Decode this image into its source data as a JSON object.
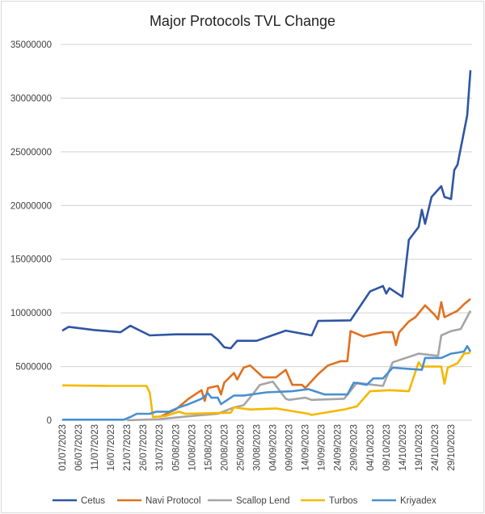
{
  "chart_data": {
    "type": "line",
    "title": "Major Protocols TVL Change",
    "xlabel": "",
    "ylabel": "",
    "xlim": [
      "01/07/2023",
      "04/11/2023"
    ],
    "ylim": [
      0,
      35000000
    ],
    "y_ticks": [
      0,
      5000000,
      10000000,
      15000000,
      20000000,
      25000000,
      30000000,
      35000000
    ],
    "x_tick_labels": [
      "01/07/2023",
      "06/07/2023",
      "11/07/2023",
      "16/07/2023",
      "21/07/2023",
      "26/07/2023",
      "31/07/2023",
      "05/08/2023",
      "10/08/2023",
      "15/08/2023",
      "20/08/2023",
      "25/08/2023",
      "30/08/2023",
      "04/09/2023",
      "09/09/2023",
      "14/09/2023",
      "19/09/2023",
      "24/09/2023",
      "29/09/2023",
      "04/10/2023",
      "09/10/2023",
      "14/10/2023",
      "19/10/2023",
      "24/10/2023",
      "29/10/2023"
    ],
    "grid": "horizontal",
    "legend": "bottom",
    "series": [
      {
        "name": "Cetus",
        "color": "#2f55a4",
        "points": [
          [
            "01/07/2023",
            8350000
          ],
          [
            "03/07/2023",
            8700000
          ],
          [
            "11/07/2023",
            8400000
          ],
          [
            "19/07/2023",
            8200000
          ],
          [
            "22/07/2023",
            8800000
          ],
          [
            "28/07/2023",
            7900000
          ],
          [
            "05/08/2023",
            8000000
          ],
          [
            "16/08/2023",
            8000000
          ],
          [
            "18/08/2023",
            7500000
          ],
          [
            "20/08/2023",
            6800000
          ],
          [
            "22/08/2023",
            6700000
          ],
          [
            "24/08/2023",
            7400000
          ],
          [
            "30/08/2023",
            7400000
          ],
          [
            "08/09/2023",
            8350000
          ],
          [
            "16/09/2023",
            7900000
          ],
          [
            "18/09/2023",
            9250000
          ],
          [
            "28/09/2023",
            9300000
          ],
          [
            "04/10/2023",
            12000000
          ],
          [
            "08/10/2023",
            12500000
          ],
          [
            "09/10/2023",
            11800000
          ],
          [
            "10/10/2023",
            12300000
          ],
          [
            "14/10/2023",
            11500000
          ],
          [
            "16/10/2023",
            16800000
          ],
          [
            "19/10/2023",
            18000000
          ],
          [
            "20/10/2023",
            19600000
          ],
          [
            "21/10/2023",
            18300000
          ],
          [
            "23/10/2023",
            20800000
          ],
          [
            "26/10/2023",
            21800000
          ],
          [
            "27/10/2023",
            20800000
          ],
          [
            "29/10/2023",
            20600000
          ],
          [
            "30/10/2023",
            23300000
          ],
          [
            "31/10/2023",
            23800000
          ],
          [
            "03/11/2023",
            28400000
          ],
          [
            "04/11/2023",
            32600000
          ]
        ]
      },
      {
        "name": "Navi Protocol",
        "color": "#e07020",
        "points": [
          [
            "31/07/2023",
            300000
          ],
          [
            "05/08/2023",
            1000000
          ],
          [
            "09/08/2023",
            2000000
          ],
          [
            "13/08/2023",
            2800000
          ],
          [
            "14/08/2023",
            1800000
          ],
          [
            "15/08/2023",
            3000000
          ],
          [
            "18/08/2023",
            3200000
          ],
          [
            "19/08/2023",
            2400000
          ],
          [
            "20/08/2023",
            3500000
          ],
          [
            "23/08/2023",
            4400000
          ],
          [
            "24/08/2023",
            3800000
          ],
          [
            "26/08/2023",
            4900000
          ],
          [
            "28/08/2023",
            5100000
          ],
          [
            "01/09/2023",
            4000000
          ],
          [
            "05/09/2023",
            4000000
          ],
          [
            "08/09/2023",
            4700000
          ],
          [
            "10/09/2023",
            3300000
          ],
          [
            "13/09/2023",
            3300000
          ],
          [
            "14/09/2023",
            3000000
          ],
          [
            "18/09/2023",
            4300000
          ],
          [
            "21/09/2023",
            5100000
          ],
          [
            "25/09/2023",
            5500000
          ],
          [
            "27/09/2023",
            5500000
          ],
          [
            "28/09/2023",
            8300000
          ],
          [
            "02/10/2023",
            7800000
          ],
          [
            "05/10/2023",
            8000000
          ],
          [
            "08/10/2023",
            8200000
          ],
          [
            "11/10/2023",
            8200000
          ],
          [
            "12/10/2023",
            7000000
          ],
          [
            "13/10/2023",
            8200000
          ],
          [
            "16/10/2023",
            9200000
          ],
          [
            "18/10/2023",
            9600000
          ],
          [
            "21/10/2023",
            10700000
          ],
          [
            "24/10/2023",
            9800000
          ],
          [
            "25/10/2023",
            9400000
          ],
          [
            "26/10/2023",
            11000000
          ],
          [
            "27/10/2023",
            9600000
          ],
          [
            "31/10/2023",
            10200000
          ],
          [
            "02/11/2023",
            10800000
          ],
          [
            "04/11/2023",
            11300000
          ]
        ]
      },
      {
        "name": "Scallop Lend",
        "color": "#a5a5a5",
        "points": [
          [
            "21/07/2023",
            0
          ],
          [
            "31/07/2023",
            100000
          ],
          [
            "10/08/2023",
            400000
          ],
          [
            "18/08/2023",
            600000
          ],
          [
            "23/08/2023",
            1200000
          ],
          [
            "26/08/2023",
            1400000
          ],
          [
            "29/08/2023",
            2500000
          ],
          [
            "31/08/2023",
            3300000
          ],
          [
            "04/09/2023",
            3600000
          ],
          [
            "08/09/2023",
            2000000
          ],
          [
            "09/09/2023",
            1900000
          ],
          [
            "14/09/2023",
            2100000
          ],
          [
            "16/09/2023",
            1900000
          ],
          [
            "26/09/2023",
            2000000
          ],
          [
            "30/09/2023",
            3500000
          ],
          [
            "05/10/2023",
            3300000
          ],
          [
            "08/10/2023",
            3200000
          ],
          [
            "11/10/2023",
            5400000
          ],
          [
            "19/10/2023",
            6200000
          ],
          [
            "25/10/2023",
            6000000
          ],
          [
            "26/10/2023",
            7900000
          ],
          [
            "29/10/2023",
            8300000
          ],
          [
            "01/11/2023",
            8500000
          ],
          [
            "04/11/2023",
            10200000
          ]
        ]
      },
      {
        "name": "Turbos",
        "color": "#f5b800",
        "points": [
          [
            "01/07/2023",
            3250000
          ],
          [
            "15/07/2023",
            3200000
          ],
          [
            "27/07/2023",
            3200000
          ],
          [
            "28/07/2023",
            2600000
          ],
          [
            "29/07/2023",
            300000
          ],
          [
            "02/08/2023",
            400000
          ],
          [
            "06/08/2023",
            800000
          ],
          [
            "08/08/2023",
            600000
          ],
          [
            "22/08/2023",
            700000
          ],
          [
            "23/08/2023",
            1200000
          ],
          [
            "28/08/2023",
            1000000
          ],
          [
            "05/09/2023",
            1100000
          ],
          [
            "15/09/2023",
            600000
          ],
          [
            "16/09/2023",
            500000
          ],
          [
            "26/09/2023",
            1000000
          ],
          [
            "30/09/2023",
            1300000
          ],
          [
            "02/10/2023",
            2000000
          ],
          [
            "04/10/2023",
            2700000
          ],
          [
            "10/10/2023",
            2800000
          ],
          [
            "16/10/2023",
            2700000
          ],
          [
            "19/10/2023",
            5400000
          ],
          [
            "20/10/2023",
            5000000
          ],
          [
            "26/10/2023",
            5000000
          ],
          [
            "27/10/2023",
            3400000
          ],
          [
            "28/10/2023",
            4900000
          ],
          [
            "31/10/2023",
            5300000
          ],
          [
            "02/11/2023",
            6200000
          ],
          [
            "04/11/2023",
            6300000
          ]
        ]
      },
      {
        "name": "Kriyadex",
        "color": "#4a8fd0",
        "points": [
          [
            "01/07/2023",
            50000
          ],
          [
            "20/07/2023",
            50000
          ],
          [
            "22/07/2023",
            300000
          ],
          [
            "24/07/2023",
            600000
          ],
          [
            "28/07/2023",
            600000
          ],
          [
            "30/07/2023",
            800000
          ],
          [
            "03/08/2023",
            800000
          ],
          [
            "06/08/2023",
            1200000
          ],
          [
            "09/08/2023",
            1500000
          ],
          [
            "13/08/2023",
            2000000
          ],
          [
            "15/08/2023",
            2500000
          ],
          [
            "16/08/2023",
            2100000
          ],
          [
            "18/08/2023",
            2100000
          ],
          [
            "19/08/2023",
            1500000
          ],
          [
            "23/08/2023",
            2300000
          ],
          [
            "26/08/2023",
            2300000
          ],
          [
            "02/09/2023",
            2600000
          ],
          [
            "10/09/2023",
            2700000
          ],
          [
            "15/09/2023",
            2900000
          ],
          [
            "20/09/2023",
            2400000
          ],
          [
            "27/09/2023",
            2400000
          ],
          [
            "29/09/2023",
            3500000
          ],
          [
            "03/10/2023",
            3300000
          ],
          [
            "05/10/2023",
            3900000
          ],
          [
            "08/10/2023",
            3900000
          ],
          [
            "11/10/2023",
            4900000
          ],
          [
            "20/10/2023",
            4700000
          ],
          [
            "21/10/2023",
            5800000
          ],
          [
            "26/10/2023",
            5800000
          ],
          [
            "29/10/2023",
            6200000
          ],
          [
            "02/11/2023",
            6400000
          ],
          [
            "03/11/2023",
            6900000
          ],
          [
            "04/11/2023",
            6400000
          ]
        ]
      }
    ]
  }
}
